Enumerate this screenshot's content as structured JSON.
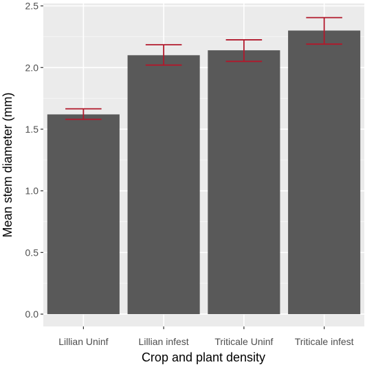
{
  "chart_data": {
    "type": "bar",
    "title": "",
    "xlabel": "Crop and plant density",
    "ylabel": "Mean stem diameter (mm)",
    "categories": [
      "Lillian Uninf",
      "Lillian infest",
      "Triticale Uninf",
      "Triticale infest"
    ],
    "values": [
      1.62,
      2.1,
      2.14,
      2.3
    ],
    "error_low": [
      1.58,
      2.02,
      2.05,
      2.19
    ],
    "error_high": [
      1.665,
      2.185,
      2.225,
      2.405
    ],
    "ylim": [
      -0.1,
      2.52
    ],
    "yticks": [
      0.0,
      0.5,
      1.0,
      1.5,
      2.0,
      2.5
    ],
    "ytick_labels": [
      "0.0",
      "0.5",
      "1.0",
      "1.5",
      "2.0",
      "2.5"
    ],
    "grid": true,
    "legend": "none",
    "colors": {
      "bar": "#595959",
      "error_bar": "#b2182b",
      "panel_bg": "#ebebeb",
      "grid_major": "#ffffff",
      "grid_minor": "#f5f5f5",
      "tick_label": "#4d4d4d"
    }
  }
}
